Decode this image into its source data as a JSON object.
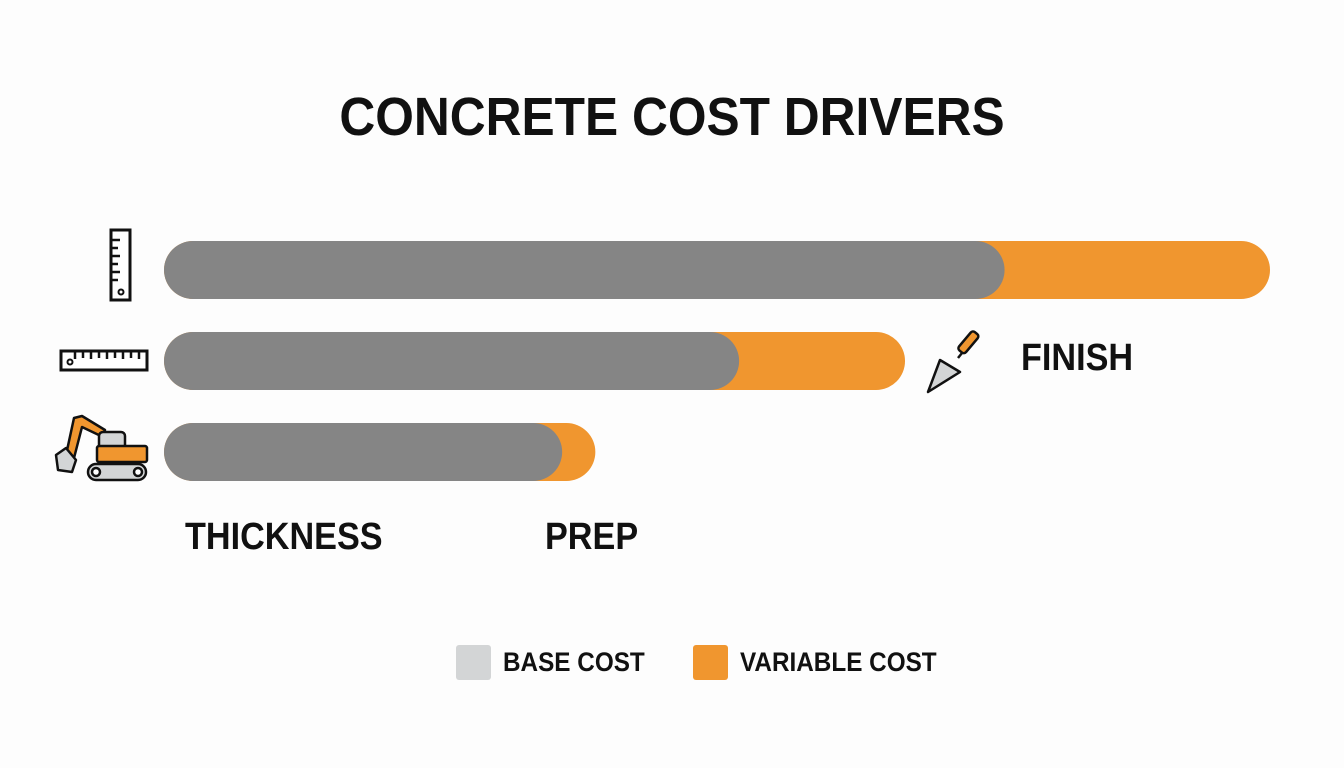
{
  "chart_data": {
    "type": "bar",
    "orientation": "horizontal",
    "stacked": true,
    "title": "CONCRETE COST DRIVERS",
    "categories": [
      "THICKNESS",
      "FINISH",
      "PREP"
    ],
    "category_icons": [
      "vertical-ruler-icon",
      "horizontal-ruler-icon",
      "excavator-icon"
    ],
    "label_icons": {
      "FINISH": "trowel-icon"
    },
    "series": [
      {
        "name": "BASE COST",
        "values": [
          76,
          52,
          36
        ]
      },
      {
        "name": "VARIABLE COST",
        "values": [
          24,
          15,
          3
        ]
      }
    ],
    "xlim": [
      0,
      100
    ],
    "grid": false,
    "axes_visible": false,
    "legend_placement": "bottom",
    "colors": {
      "bar_base": "#858585",
      "legend_base": "#d3d5d6",
      "variable": "#f0962f"
    }
  }
}
